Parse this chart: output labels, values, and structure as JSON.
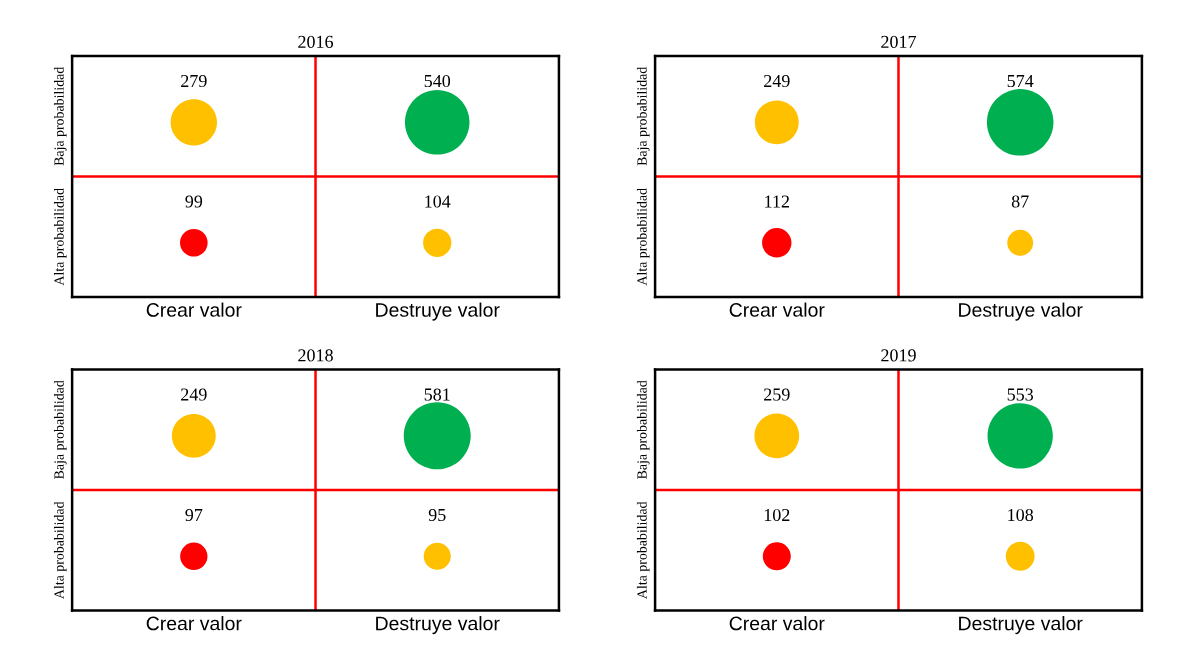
{
  "chart_data": [
    {
      "type": "heatmap",
      "data_labels": true,
      "title": "2016",
      "categories": [
        "Crear valor",
        "Destruye valor"
      ],
      "y_categories": [
        "Baja probabilidad",
        "Alta probabilidad"
      ],
      "cells": [
        [
          279,
          540
        ],
        [
          99,
          104
        ]
      ],
      "colors": [
        [
          "#ffc000",
          "#00b050"
        ],
        [
          "#ff0000",
          "#ffc000"
        ]
      ]
    },
    {
      "type": "heatmap",
      "data_labels": true,
      "title": "2017",
      "categories": [
        "Crear valor",
        "Destruye valor"
      ],
      "y_categories": [
        "Baja probabilidad",
        "Alta probabilidad"
      ],
      "cells": [
        [
          249,
          574
        ],
        [
          112,
          87
        ]
      ],
      "colors": [
        [
          "#ffc000",
          "#00b050"
        ],
        [
          "#ff0000",
          "#ffc000"
        ]
      ]
    },
    {
      "type": "heatmap",
      "data_labels": true,
      "title": "2018",
      "categories": [
        "Crear valor",
        "Destruye valor"
      ],
      "y_categories": [
        "Baja probabilidad",
        "Alta probabilidad"
      ],
      "cells": [
        [
          249,
          581
        ],
        [
          97,
          95
        ]
      ],
      "colors": [
        [
          "#ffc000",
          "#00b050"
        ],
        [
          "#ff0000",
          "#ffc000"
        ]
      ]
    },
    {
      "type": "heatmap",
      "data_labels": true,
      "title": "2019",
      "categories": [
        "Crear valor",
        "Destruye valor"
      ],
      "y_categories": [
        "Baja probabilidad",
        "Alta probabilidad"
      ],
      "cells": [
        [
          259,
          553
        ],
        [
          102,
          108
        ]
      ],
      "colors": [
        [
          "#ffc000",
          "#00b050"
        ],
        [
          "#ff0000",
          "#ffc000"
        ]
      ]
    }
  ]
}
